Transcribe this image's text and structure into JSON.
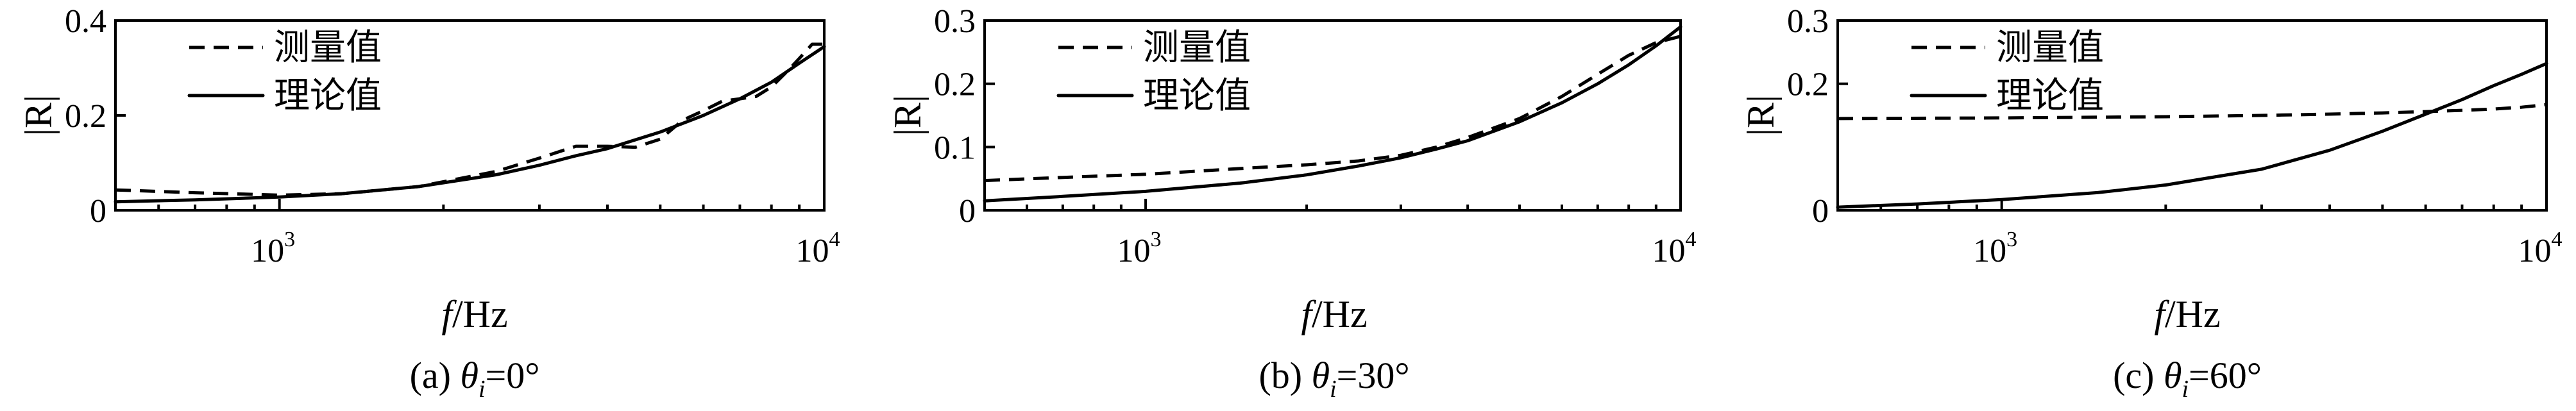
{
  "chart_data": [
    {
      "type": "line",
      "caption": {
        "prefix": "(a) ",
        "theta": "θ",
        "sub": "i",
        "suffix": "=0°"
      },
      "xlabel": {
        "italic": "f",
        "rest": "/Hz"
      },
      "ylabel": "|R|",
      "x_scale": "log",
      "xlim": [
        500,
        10000
      ],
      "ylim": [
        0,
        0.4
      ],
      "x_ticks": [
        {
          "base": "10",
          "exp": "3",
          "value": 1000
        },
        {
          "base": "10",
          "exp": "4",
          "value": 10000
        }
      ],
      "y_ticks": [
        {
          "label": "0",
          "value": 0
        },
        {
          "label": "0.2",
          "value": 0.2
        },
        {
          "label": "0.4",
          "value": 0.4
        }
      ],
      "legend": {
        "position": "top-left"
      },
      "series": [
        {
          "name": "测量值",
          "style": "dashed",
          "x": [
            500,
            700,
            1000,
            1300,
            1800,
            2500,
            3000,
            3500,
            4000,
            4500,
            5000,
            5500,
            6000,
            6500,
            7000,
            7500,
            8000,
            8500,
            9000,
            9500,
            10000
          ],
          "y": [
            0.043,
            0.037,
            0.032,
            0.035,
            0.05,
            0.082,
            0.11,
            0.135,
            0.135,
            0.133,
            0.15,
            0.19,
            0.21,
            0.23,
            0.235,
            0.24,
            0.26,
            0.29,
            0.32,
            0.35,
            0.35
          ]
        },
        {
          "name": "理论值",
          "style": "solid",
          "x": [
            500,
            700,
            1000,
            1300,
            1800,
            2500,
            3000,
            3500,
            4000,
            5000,
            6000,
            7000,
            8000,
            9000,
            10000
          ],
          "y": [
            0.018,
            0.022,
            0.028,
            0.035,
            0.05,
            0.075,
            0.095,
            0.115,
            0.13,
            0.165,
            0.2,
            0.235,
            0.27,
            0.31,
            0.345
          ]
        }
      ]
    },
    {
      "type": "line",
      "caption": {
        "prefix": "(b) ",
        "theta": "θ",
        "sub": "i",
        "suffix": "=30°"
      },
      "xlabel": {
        "italic": "f",
        "rest": "/Hz"
      },
      "ylabel": "|R|",
      "x_scale": "log",
      "xlim": [
        500,
        10000
      ],
      "ylim": [
        0,
        0.3
      ],
      "x_ticks": [
        {
          "base": "10",
          "exp": "3",
          "value": 1000
        },
        {
          "base": "10",
          "exp": "4",
          "value": 10000
        }
      ],
      "y_ticks": [
        {
          "label": "0",
          "value": 0
        },
        {
          "label": "0.1",
          "value": 0.1
        },
        {
          "label": "0.2",
          "value": 0.2
        },
        {
          "label": "0.3",
          "value": 0.3
        }
      ],
      "legend": {
        "position": "top-left"
      },
      "series": [
        {
          "name": "测量值",
          "style": "dashed",
          "x": [
            500,
            700,
            1000,
            1500,
            2000,
            2500,
            3000,
            3500,
            4000,
            5000,
            6000,
            7000,
            8000,
            9000,
            10000
          ],
          "y": [
            0.047,
            0.052,
            0.057,
            0.066,
            0.072,
            0.078,
            0.087,
            0.1,
            0.115,
            0.145,
            0.18,
            0.215,
            0.245,
            0.265,
            0.275
          ]
        },
        {
          "name": "理论值",
          "style": "solid",
          "x": [
            500,
            700,
            1000,
            1500,
            2000,
            2500,
            3000,
            3500,
            4000,
            5000,
            6000,
            7000,
            8000,
            9000,
            10000
          ],
          "y": [
            0.015,
            0.022,
            0.03,
            0.043,
            0.056,
            0.07,
            0.083,
            0.097,
            0.11,
            0.14,
            0.17,
            0.2,
            0.23,
            0.26,
            0.29
          ]
        }
      ]
    },
    {
      "type": "line",
      "caption": {
        "prefix": "(c) ",
        "theta": "θ",
        "sub": "i",
        "suffix": "=60°"
      },
      "xlabel": {
        "italic": "f",
        "rest": "/Hz"
      },
      "ylabel": "|R|",
      "x_scale": "log",
      "xlim": [
        500,
        10000
      ],
      "ylim": [
        0,
        0.3
      ],
      "x_ticks": [
        {
          "base": "10",
          "exp": "3",
          "value": 1000
        },
        {
          "base": "10",
          "exp": "4",
          "value": 10000
        }
      ],
      "y_ticks": [
        {
          "label": "0",
          "value": 0
        },
        {
          "label": "0.2",
          "value": 0.2
        },
        {
          "label": "0.3",
          "value": 0.3
        }
      ],
      "legend": {
        "position": "top-left"
      },
      "series": [
        {
          "name": "测量值",
          "style": "dashed",
          "x": [
            500,
            1000,
            2000,
            3000,
            4000,
            5000,
            6000,
            7000,
            8000,
            9000,
            10000
          ],
          "y": [
            0.145,
            0.146,
            0.148,
            0.15,
            0.152,
            0.154,
            0.156,
            0.158,
            0.16,
            0.163,
            0.167
          ]
        },
        {
          "name": "理论值",
          "style": "solid",
          "x": [
            500,
            700,
            1000,
            1500,
            2000,
            3000,
            4000,
            5000,
            6000,
            7000,
            8000,
            9000,
            10000
          ],
          "y": [
            0.005,
            0.01,
            0.017,
            0.028,
            0.04,
            0.065,
            0.095,
            0.125,
            0.152,
            0.175,
            0.197,
            0.215,
            0.232
          ]
        }
      ]
    }
  ]
}
